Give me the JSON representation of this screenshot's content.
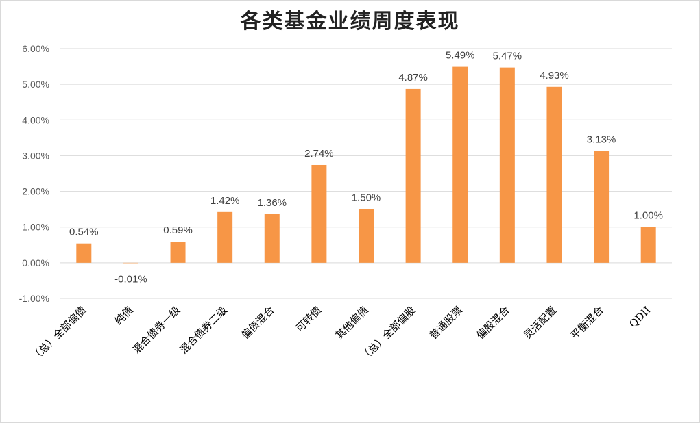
{
  "chart_data": {
    "type": "bar",
    "title": "各类基金业绩周度表现",
    "categories": [
      "（总）全部偏债",
      "纯债",
      "混合债券一级",
      "混合债券二级",
      "偏债混合",
      "可转债",
      "其他偏债",
      "（总）全部偏股",
      "普通股票",
      "偏股混合",
      "灵活配置",
      "平衡混合",
      "QDII"
    ],
    "values": [
      0.54,
      -0.01,
      0.59,
      1.42,
      1.36,
      2.74,
      1.5,
      4.87,
      5.49,
      5.47,
      4.93,
      3.13,
      1.0
    ],
    "data_labels": [
      "0.54%",
      "-0.01%",
      "0.59%",
      "1.42%",
      "1.36%",
      "2.74%",
      "1.50%",
      "4.87%",
      "5.49%",
      "5.47%",
      "4.93%",
      "3.13%",
      "1.00%"
    ],
    "y_ticks": [
      -1,
      0,
      1,
      2,
      3,
      4,
      5,
      6
    ],
    "y_tick_labels": [
      "-1.00%",
      "0.00%",
      "1.00%",
      "2.00%",
      "3.00%",
      "4.00%",
      "5.00%",
      "6.00%"
    ],
    "ylim": [
      -1,
      6
    ],
    "xlabel": "",
    "ylabel": "",
    "grid": true,
    "legend": "none",
    "bar_color": "#f79646",
    "grid_color": "#d9d9d9"
  }
}
